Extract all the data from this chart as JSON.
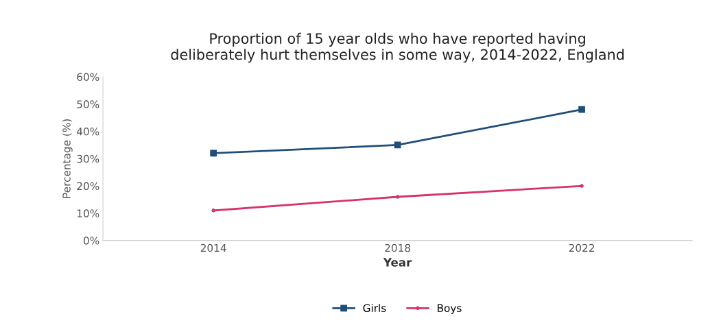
{
  "chart_data": {
    "type": "line",
    "title": "Proportion of 15 year olds who have reported having\ndeliberately hurt themselves in some way, 2014-2022, England",
    "xlabel": "Year",
    "ylabel": "Percentage (%)",
    "categories": [
      "2014",
      "2018",
      "2022"
    ],
    "series": [
      {
        "name": "Girls",
        "color": "#1f4e79",
        "marker": "square",
        "values": [
          32,
          35,
          48
        ]
      },
      {
        "name": "Boys",
        "color": "#d6336c",
        "marker": "circle",
        "values": [
          11,
          16,
          20
        ]
      }
    ],
    "ylim": [
      0,
      60
    ],
    "yticks": [
      {
        "value": 0,
        "label": "0%"
      },
      {
        "value": 10,
        "label": "10%"
      },
      {
        "value": 20,
        "label": "20%"
      },
      {
        "value": 30,
        "label": "30%"
      },
      {
        "value": 40,
        "label": "40%"
      },
      {
        "value": 50,
        "label": "50%"
      },
      {
        "value": 60,
        "label": "60%"
      }
    ],
    "grid": false,
    "legend": "bottom",
    "line_style": "solid"
  }
}
